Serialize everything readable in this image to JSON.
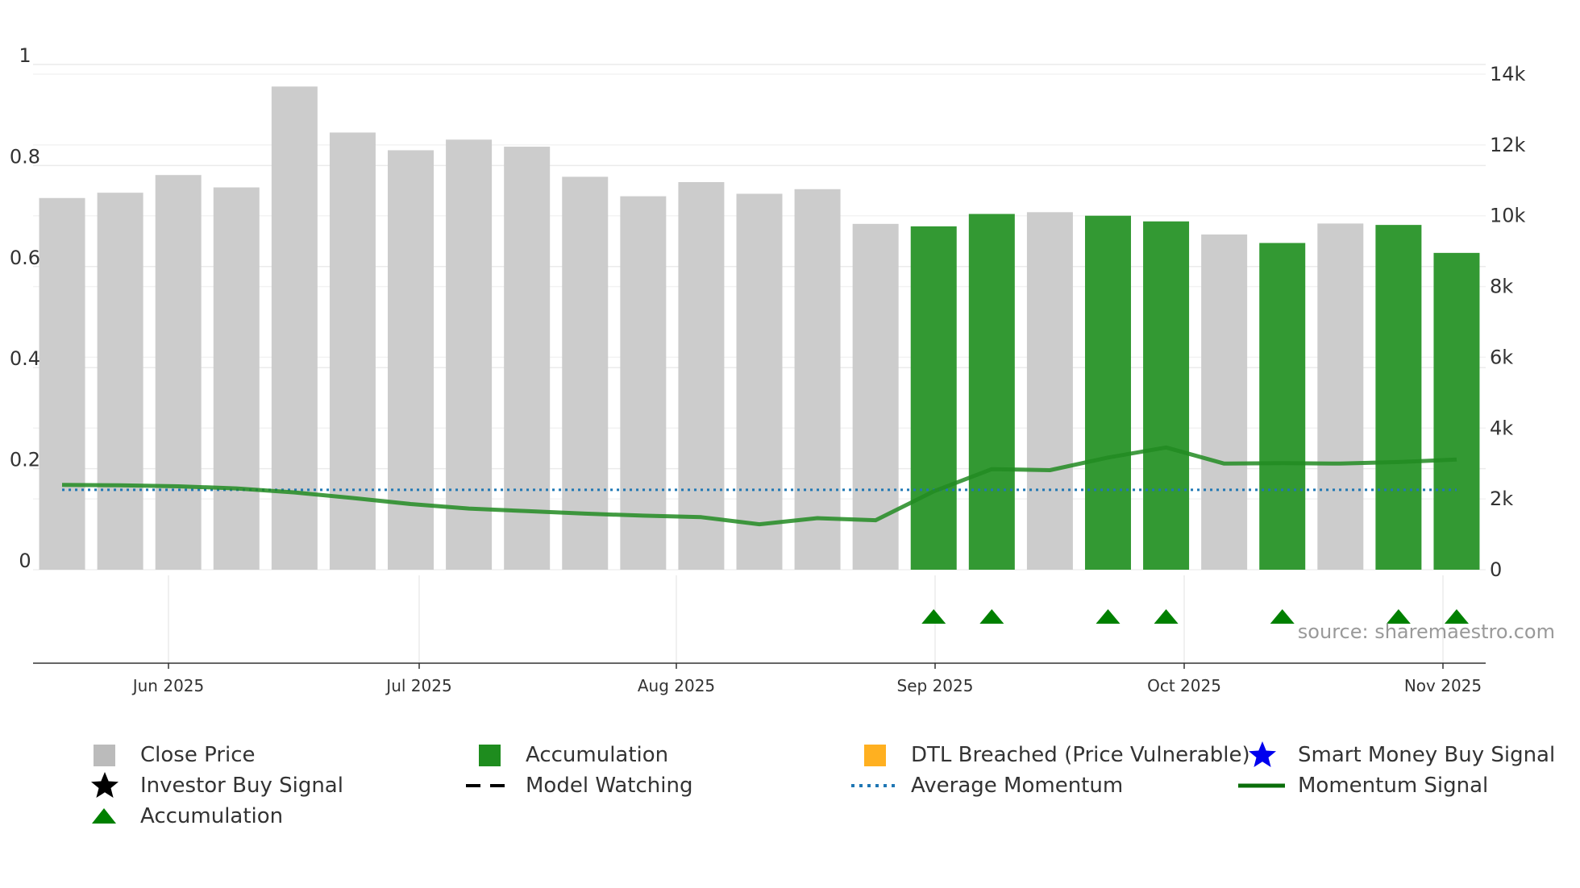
{
  "chart_data": {
    "type": "bar+line",
    "source_label": "source: sharemaestro.com",
    "left_axis": {
      "ylim": [
        0,
        1
      ],
      "ticks": [
        "0",
        "0.2",
        "0.4",
        "0.6",
        "0.8",
        "1"
      ]
    },
    "right_axis": {
      "ylim": [
        0,
        14000
      ],
      "ticks": [
        "0",
        "2k",
        "4k",
        "6k",
        "8k",
        "10k",
        "12k",
        "14k"
      ]
    },
    "x_ticks": [
      "Jun 2025",
      "Jul 2025",
      "Aug 2025",
      "Sep 2025",
      "Oct 2025",
      "Nov 2025"
    ],
    "weeks": 25,
    "close_price": [
      10500,
      10650,
      11150,
      10800,
      13650,
      12350,
      11850,
      12150,
      11950,
      11100,
      10550,
      10950,
      10620,
      10750,
      9770,
      9700,
      10050,
      10100,
      10000,
      9840,
      9470,
      9230,
      9780,
      9740,
      8950
    ],
    "accumulation_weeks": [
      15,
      16,
      18,
      19,
      21,
      23,
      24
    ],
    "momentum_signal": [
      0.168,
      0.167,
      0.165,
      0.161,
      0.153,
      0.142,
      0.13,
      0.121,
      0.116,
      0.111,
      0.107,
      0.104,
      0.09,
      0.102,
      0.098,
      0.155,
      0.199,
      0.197,
      0.222,
      0.242,
      0.21,
      0.211,
      0.21,
      0.213,
      0.218
    ],
    "average_momentum": 0.158,
    "accumulation_triangles": [
      15,
      16,
      18,
      19,
      21,
      23,
      24
    ],
    "colors": {
      "close_price": "#cccccc",
      "accumulation": "#339933",
      "momentum": "#228b22",
      "average": "#1f77b4",
      "dtl": "#ffb020",
      "smart_money": "#0000ee",
      "triangle": "#008000"
    }
  },
  "legend": [
    {
      "label": "Close Price",
      "icon": "square-swatch",
      "color": "#bbbbbb"
    },
    {
      "label": "Accumulation",
      "icon": "square-swatch",
      "color": "#1e8c1e"
    },
    {
      "label": "DTL Breached (Price Vulnerable)",
      "icon": "square-swatch",
      "color": "#ffb020"
    },
    {
      "label": "Smart Money Buy Signal",
      "icon": "star-marker",
      "color": "#0000ee"
    },
    {
      "label": "Investor Buy Signal",
      "icon": "star-marker",
      "color": "#000000"
    },
    {
      "label": "Model Watching",
      "icon": "dashed-line",
      "color": "#000000"
    },
    {
      "label": "Average Momentum",
      "icon": "dotted-line",
      "color": "#1f77b4"
    },
    {
      "label": "Momentum Signal",
      "icon": "solid-line",
      "color": "#0a6e0a"
    },
    {
      "label": "Accumulation",
      "icon": "triangle-marker",
      "color": "#008000"
    }
  ]
}
